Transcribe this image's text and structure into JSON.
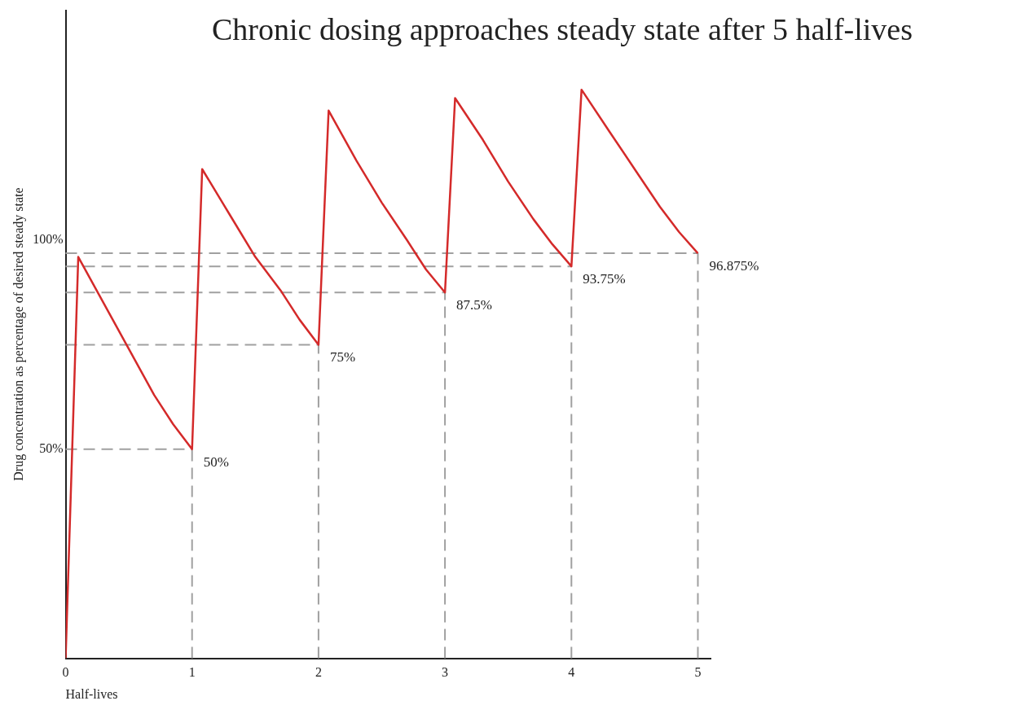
{
  "chart_data": {
    "type": "line",
    "title": "Chronic dosing approaches steady state after 5 half-lives",
    "xlabel": "Half-lives",
    "ylabel": "Drug concentration as percentage of desired steady state",
    "series": [
      {
        "color": "#d42a2a",
        "x": [
          0,
          0.1,
          0.3,
          0.5,
          0.7,
          0.85,
          1,
          1.08,
          1.3,
          1.5,
          1.7,
          1.85,
          2,
          2.08,
          2.3,
          2.5,
          2.7,
          2.85,
          3,
          3.08,
          3.3,
          3.5,
          3.7,
          3.85,
          4,
          4.08,
          4.3,
          4.5,
          4.7,
          4.85,
          5
        ],
        "values": [
          0,
          96,
          85,
          74,
          63,
          56,
          50,
          117,
          106,
          96,
          88,
          81,
          75,
          131,
          119,
          109,
          100,
          93,
          87.5,
          134,
          124,
          114,
          105,
          99,
          93.75,
          136,
          126,
          117,
          108,
          102,
          96.875
        ]
      }
    ],
    "xlim": [
      0,
      5.1
    ],
    "xticks": [
      0,
      1,
      2,
      3,
      4,
      5
    ],
    "ylim": [
      0,
      155
    ],
    "yticks": [
      {
        "value": 50,
        "label": "50%"
      },
      {
        "value": 100,
        "label": "100%"
      }
    ],
    "ref_lines": [
      {
        "axis": "y",
        "value": 50,
        "color": "#a0a0a0",
        "line_style": "dashed"
      },
      {
        "axis": "y",
        "value": 75,
        "color": "#a0a0a0",
        "line_style": "dashed"
      },
      {
        "axis": "y",
        "value": 87.5,
        "color": "#a0a0a0",
        "line_style": "dashed"
      },
      {
        "axis": "y",
        "value": 93.75,
        "color": "#a0a0a0",
        "line_style": "dashed"
      },
      {
        "axis": "y",
        "value": 96.875,
        "color": "#a0a0a0",
        "line_style": "dashed"
      },
      {
        "axis": "x",
        "value": 1,
        "color": "#a0a0a0",
        "line_style": "dashed"
      },
      {
        "axis": "x",
        "value": 2,
        "color": "#a0a0a0",
        "line_style": "dashed"
      },
      {
        "axis": "x",
        "value": 3,
        "color": "#a0a0a0",
        "line_style": "dashed"
      },
      {
        "axis": "x",
        "value": 4,
        "color": "#a0a0a0",
        "line_style": "dashed"
      },
      {
        "axis": "x",
        "value": 5,
        "color": "#a0a0a0",
        "line_style": "dashed"
      }
    ],
    "annotations": [
      {
        "text": "50%",
        "x": 1,
        "y": 50
      },
      {
        "text": "75%",
        "x": 2,
        "y": 75
      },
      {
        "text": "87.5%",
        "x": 3,
        "y": 87.5
      },
      {
        "text": "93.75%",
        "x": 4,
        "y": 93.75
      },
      {
        "text": "96.875%",
        "x": 5,
        "y": 96.875
      }
    ],
    "grid": false,
    "legend": false,
    "marker": "none",
    "line_style": "solid"
  }
}
